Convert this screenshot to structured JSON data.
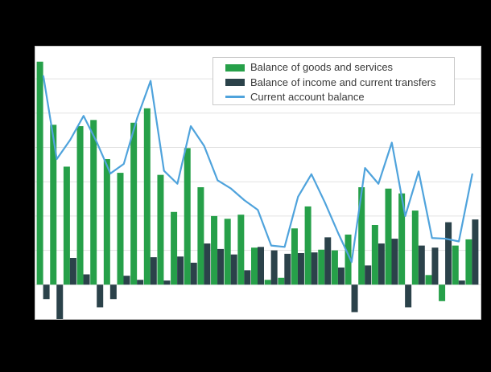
{
  "page": {
    "background": "#000000"
  },
  "panel": {
    "background": "#ffffff",
    "border_color": "#c9c9c9",
    "gridline_color": "#e2e2e2"
  },
  "legend": {
    "background": "#ffffff",
    "border_color": "#c9c9c9",
    "text_color": "#3b3b3b",
    "items": [
      {
        "label": "Balance of goods and services",
        "swatch": "bar",
        "color": "#26a049"
      },
      {
        "label": "Balance of income and current transfers",
        "swatch": "bar",
        "color": "#2b424a"
      },
      {
        "label": "Current account balance",
        "swatch": "line",
        "color": "#4fa3dc"
      }
    ]
  },
  "chart_data": {
    "type": "bar",
    "note": "Combo chart: two bar series plus one line series over 33 periods (quarterly). No title or axis tick labels are visible in the image; values are estimated at 50 units per horizontal gridline.",
    "title": "",
    "xlabel": "",
    "ylabel": "",
    "x": [
      1,
      2,
      3,
      4,
      5,
      6,
      7,
      8,
      9,
      10,
      11,
      12,
      13,
      14,
      15,
      16,
      17,
      18,
      19,
      20,
      21,
      22,
      23,
      24,
      25,
      26,
      27,
      28,
      29,
      30,
      31,
      32,
      33
    ],
    "x_tick_labels": [],
    "series": [
      {
        "name": "Balance of goods and services",
        "type": "bar",
        "color": "#26a049",
        "values": [
          325,
          233,
          172,
          231,
          240,
          183,
          163,
          236,
          257,
          160,
          106,
          199,
          142,
          100,
          96,
          102,
          54,
          7,
          10,
          82,
          114,
          51,
          50,
          73,
          142,
          87,
          140,
          133,
          108,
          14,
          -24,
          57,
          66
        ]
      },
      {
        "name": "Balance of income and current transfers",
        "type": "bar",
        "color": "#2b424a",
        "values": [
          -21,
          -50,
          39,
          15,
          -33,
          -21,
          13,
          7,
          40,
          6,
          41,
          32,
          60,
          52,
          44,
          21,
          55,
          50,
          45,
          46,
          47,
          69,
          25,
          -40,
          28,
          60,
          67,
          -33,
          57,
          54,
          91,
          6,
          95
        ]
      },
      {
        "name": "Current account balance",
        "type": "line",
        "color": "#4fa3dc",
        "values": [
          304,
          183,
          211,
          246,
          207,
          162,
          176,
          243,
          297,
          166,
          147,
          231,
          202,
          152,
          140,
          123,
          109,
          57,
          55,
          128,
          161,
          120,
          75,
          33,
          170,
          147,
          207,
          100,
          165,
          68,
          67,
          63,
          161
        ]
      }
    ],
    "ylim": [
      -50,
      347
    ],
    "gridline_values": [
      0,
      50,
      100,
      150,
      200,
      250,
      300
    ],
    "grid": true,
    "legend_position": "top-right-inside"
  }
}
